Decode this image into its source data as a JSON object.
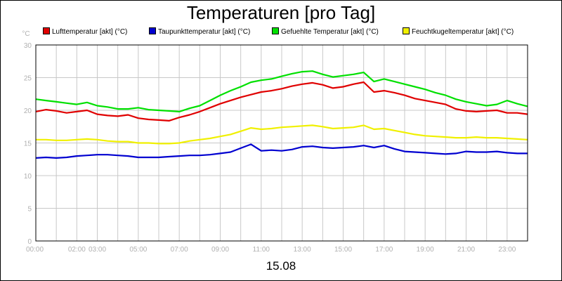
{
  "chart_data": {
    "type": "line",
    "title": "Temperaturen [pro Tag]",
    "xlabel": "15.08",
    "ylabel": "°C",
    "ylim": [
      0,
      30
    ],
    "yticks": [
      0,
      5,
      10,
      15,
      20,
      25,
      30
    ],
    "xlim": [
      0,
      24
    ],
    "xticks": [
      {
        "value": 0,
        "label": "00:00"
      },
      {
        "value": 2,
        "label": "02:00"
      },
      {
        "value": 3,
        "label": "03:00"
      },
      {
        "value": 5,
        "label": "05:00"
      },
      {
        "value": 7,
        "label": "07:00"
      },
      {
        "value": 9,
        "label": "09:00"
      },
      {
        "value": 11,
        "label": "11:00"
      },
      {
        "value": 13,
        "label": "13:00"
      },
      {
        "value": 15,
        "label": "15:00"
      },
      {
        "value": 17,
        "label": "17:00"
      },
      {
        "value": 19,
        "label": "19:00"
      },
      {
        "value": 21,
        "label": "21:00"
      },
      {
        "value": 23,
        "label": "23:00"
      }
    ],
    "grid": true,
    "legend_position": "top",
    "x": [
      0,
      0.5,
      1,
      1.5,
      2,
      2.5,
      3,
      3.5,
      4,
      4.5,
      5,
      5.5,
      6,
      6.5,
      7,
      7.5,
      8,
      8.5,
      9,
      9.5,
      10,
      10.5,
      11,
      11.5,
      12,
      12.5,
      13,
      13.5,
      14,
      14.5,
      15,
      15.5,
      16,
      16.5,
      17,
      17.5,
      18,
      18.5,
      19,
      19.5,
      20,
      20.5,
      21,
      21.5,
      22,
      22.5,
      23,
      23.5,
      24
    ],
    "series": [
      {
        "name": "Lufttemperatur [akt] (°C)",
        "color": "#e00000",
        "values": [
          19.8,
          20.1,
          19.9,
          19.6,
          19.8,
          20.0,
          19.4,
          19.2,
          19.1,
          19.3,
          18.8,
          18.6,
          18.5,
          18.4,
          18.9,
          19.3,
          19.8,
          20.4,
          21.0,
          21.5,
          22.0,
          22.4,
          22.8,
          23.0,
          23.3,
          23.7,
          24.0,
          24.2,
          23.9,
          23.4,
          23.6,
          24.0,
          24.3,
          22.8,
          23.0,
          22.7,
          22.3,
          21.8,
          21.5,
          21.2,
          20.9,
          20.2,
          19.9,
          19.8,
          19.9,
          20.0,
          19.6,
          19.6,
          19.4
        ]
      },
      {
        "name": "Taupunkttemperatur [akt] (°C)",
        "color": "#0000d0",
        "values": [
          12.7,
          12.8,
          12.7,
          12.8,
          13.0,
          13.1,
          13.2,
          13.2,
          13.1,
          13.0,
          12.8,
          12.8,
          12.8,
          12.9,
          13.0,
          13.1,
          13.1,
          13.2,
          13.4,
          13.6,
          14.2,
          14.8,
          13.8,
          13.9,
          13.8,
          14.0,
          14.4,
          14.5,
          14.3,
          14.2,
          14.3,
          14.4,
          14.6,
          14.3,
          14.6,
          14.1,
          13.7,
          13.6,
          13.5,
          13.4,
          13.3,
          13.4,
          13.7,
          13.6,
          13.6,
          13.7,
          13.5,
          13.4,
          13.4
        ]
      },
      {
        "name": "Gefuehlte Temperatur [akt] (°C)",
        "color": "#00e000",
        "values": [
          21.7,
          21.5,
          21.3,
          21.1,
          20.9,
          21.2,
          20.7,
          20.5,
          20.2,
          20.2,
          20.4,
          20.1,
          20.0,
          19.9,
          19.8,
          20.3,
          20.7,
          21.5,
          22.3,
          23.0,
          23.6,
          24.3,
          24.6,
          24.8,
          25.2,
          25.6,
          25.9,
          26.0,
          25.5,
          25.1,
          25.3,
          25.5,
          25.8,
          24.4,
          24.8,
          24.4,
          24.0,
          23.6,
          23.2,
          22.7,
          22.3,
          21.7,
          21.3,
          21.0,
          20.7,
          20.9,
          21.5,
          21.0,
          20.6
        ]
      },
      {
        "name": "Feuchtkugeltemperatur [akt] (°C)",
        "color": "#f0f000",
        "values": [
          15.5,
          15.5,
          15.4,
          15.4,
          15.5,
          15.6,
          15.5,
          15.3,
          15.2,
          15.2,
          15.0,
          15.0,
          14.9,
          14.9,
          15.0,
          15.3,
          15.5,
          15.7,
          16.0,
          16.3,
          16.8,
          17.3,
          17.1,
          17.2,
          17.4,
          17.5,
          17.6,
          17.7,
          17.5,
          17.2,
          17.3,
          17.4,
          17.7,
          17.1,
          17.2,
          16.9,
          16.6,
          16.3,
          16.1,
          16.0,
          15.9,
          15.8,
          15.8,
          15.9,
          15.8,
          15.8,
          15.7,
          15.6,
          15.5
        ]
      }
    ]
  }
}
